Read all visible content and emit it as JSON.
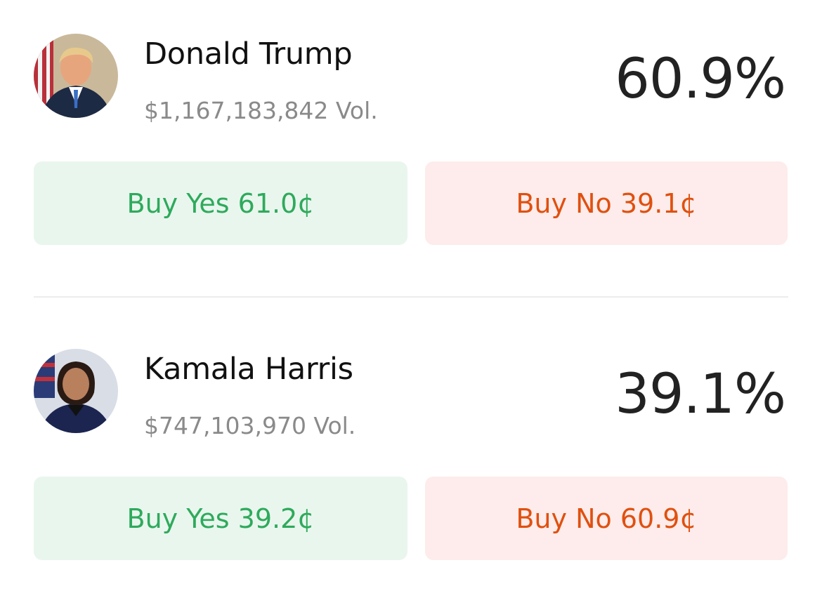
{
  "candidates": [
    {
      "name": "Donald Trump",
      "volume": "$1,167,183,842 Vol.",
      "probability": "60.9%",
      "buy_yes": "Buy Yes 61.0¢",
      "buy_no": "Buy No 39.1¢"
    },
    {
      "name": "Kamala Harris",
      "volume": "$747,103,970 Vol.",
      "probability": "39.1%",
      "buy_yes": "Buy Yes 39.2¢",
      "buy_no": "Buy No 60.9¢"
    }
  ]
}
